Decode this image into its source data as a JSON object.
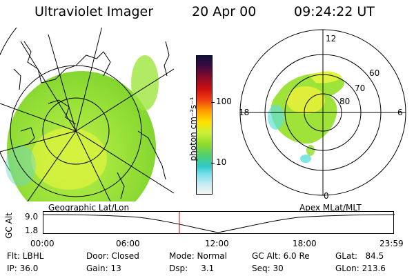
{
  "header": {
    "title": "Ultraviolet Imager",
    "date": "20 Apr 00",
    "time": "09:24:22 UT"
  },
  "colorbar": {
    "unit_label": "photon cm⁻²s⁻¹",
    "tick_100": "100",
    "tick_10": "10"
  },
  "polar": {
    "mlt_top": "12",
    "mlt_left": "18",
    "mlt_right": "6",
    "mlt_bottom": "0",
    "lat_60": "60",
    "lat_70": "70",
    "lat_80": "80"
  },
  "panels": {
    "left_label": "Geographic Lat/Lon",
    "right_label": "Apex MLat/MLT"
  },
  "alt_plot": {
    "ylabel": "GC Alt",
    "ytick_top": "9.0",
    "ytick_bottom": "1.8",
    "marker_time": "09:24",
    "xticks": [
      "00:00",
      "06:00",
      "12:00",
      "18:00",
      "23:59"
    ]
  },
  "status": {
    "filter": "Flt: LBHL",
    "ip": "IP: 36.0",
    "door": "Door: Closed",
    "gain": "Gain: 13",
    "mode": "Mode: Normal",
    "dsp": "Dsp:     3.1",
    "gc_alt": "GC Alt: 6.0 Re",
    "seq": "Seq: 30",
    "glat": "GLat:   84.5",
    "glon": "GLon: 213.6"
  },
  "colors": {
    "green": "#8fdc2a",
    "yellow": "#e6f03a",
    "cyan": "#5fe0d8",
    "orange": "#ffa000",
    "red": "#cc1010",
    "marker": "#cc0000"
  }
}
